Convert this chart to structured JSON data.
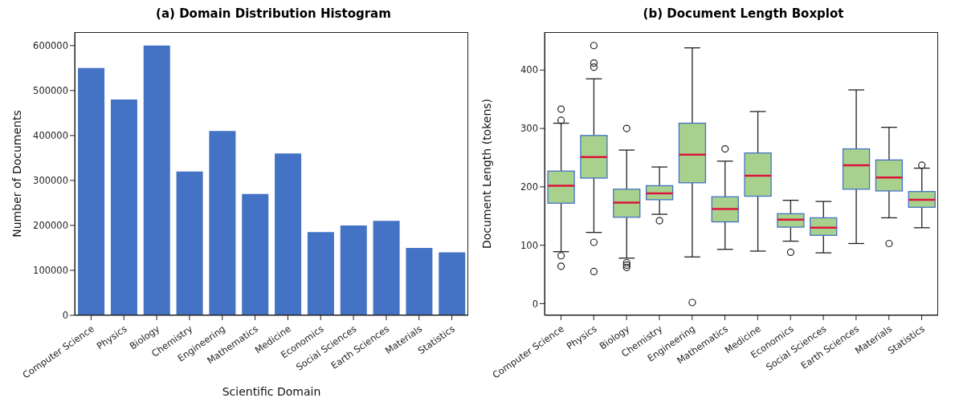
{
  "chart_data": [
    {
      "type": "bar",
      "title": "(a) Domain Distribution Histogram",
      "xlabel": "Scientific Domain",
      "ylabel": "Number of Documents",
      "categories": [
        "Computer Science",
        "Physics",
        "Biology",
        "Chemistry",
        "Engineering",
        "Mathematics",
        "Medicine",
        "Economics",
        "Social Sciences",
        "Earth Sciences",
        "Materials",
        "Statistics"
      ],
      "values": [
        550000,
        480000,
        600000,
        320000,
        410000,
        270000,
        360000,
        185000,
        200000,
        210000,
        150000,
        140000
      ],
      "color": "#4472c4",
      "ylim": [
        0,
        630000
      ],
      "yticks": [
        0,
        100000,
        200000,
        300000,
        400000,
        500000,
        600000
      ],
      "grid": false
    },
    {
      "type": "box",
      "title": "(b) Document Length Boxplot",
      "ylabel": "Document Length (tokens)",
      "categories": [
        "Computer Science",
        "Physics",
        "Biology",
        "Chemistry",
        "Engineering",
        "Mathematics",
        "Medicine",
        "Economics",
        "Social Sciences",
        "Earth Sciences",
        "Materials",
        "Statistics"
      ],
      "color": "#a9d18e",
      "ylim": [
        -20,
        465
      ],
      "yticks": [
        0,
        100,
        200,
        300,
        400
      ],
      "grid": false,
      "boxes": [
        {
          "low": 89,
          "q1": 172,
          "median": 202,
          "q3": 227,
          "high": 309,
          "outliers": [
            333,
            314,
            82,
            64
          ]
        },
        {
          "low": 122,
          "q1": 215,
          "median": 251,
          "q3": 288,
          "high": 385,
          "outliers": [
            442,
            412,
            405,
            105,
            55
          ]
        },
        {
          "low": 78,
          "q1": 148,
          "median": 173,
          "q3": 196,
          "high": 263,
          "outliers": [
            300,
            70,
            66,
            62
          ]
        },
        {
          "low": 153,
          "q1": 178,
          "median": 189,
          "q3": 202,
          "high": 234,
          "outliers": [
            142
          ]
        },
        {
          "low": 80,
          "q1": 207,
          "median": 255,
          "q3": 309,
          "high": 438,
          "outliers": [
            2
          ]
        },
        {
          "low": 93,
          "q1": 140,
          "median": 162,
          "q3": 183,
          "high": 244,
          "outliers": [
            265
          ]
        },
        {
          "low": 90,
          "q1": 184,
          "median": 219,
          "q3": 258,
          "high": 329
        },
        {
          "low": 107,
          "q1": 131,
          "median": 144,
          "q3": 154,
          "high": 177,
          "outliers": [
            88
          ]
        },
        {
          "low": 87,
          "q1": 117,
          "median": 130,
          "q3": 147,
          "high": 175
        },
        {
          "low": 103,
          "q1": 196,
          "median": 237,
          "q3": 265,
          "high": 366
        },
        {
          "low": 147,
          "q1": 193,
          "median": 216,
          "q3": 246,
          "high": 302,
          "outliers": [
            103
          ]
        },
        {
          "low": 130,
          "q1": 165,
          "median": 178,
          "q3": 192,
          "high": 232,
          "outliers": [
            237
          ]
        }
      ]
    }
  ]
}
